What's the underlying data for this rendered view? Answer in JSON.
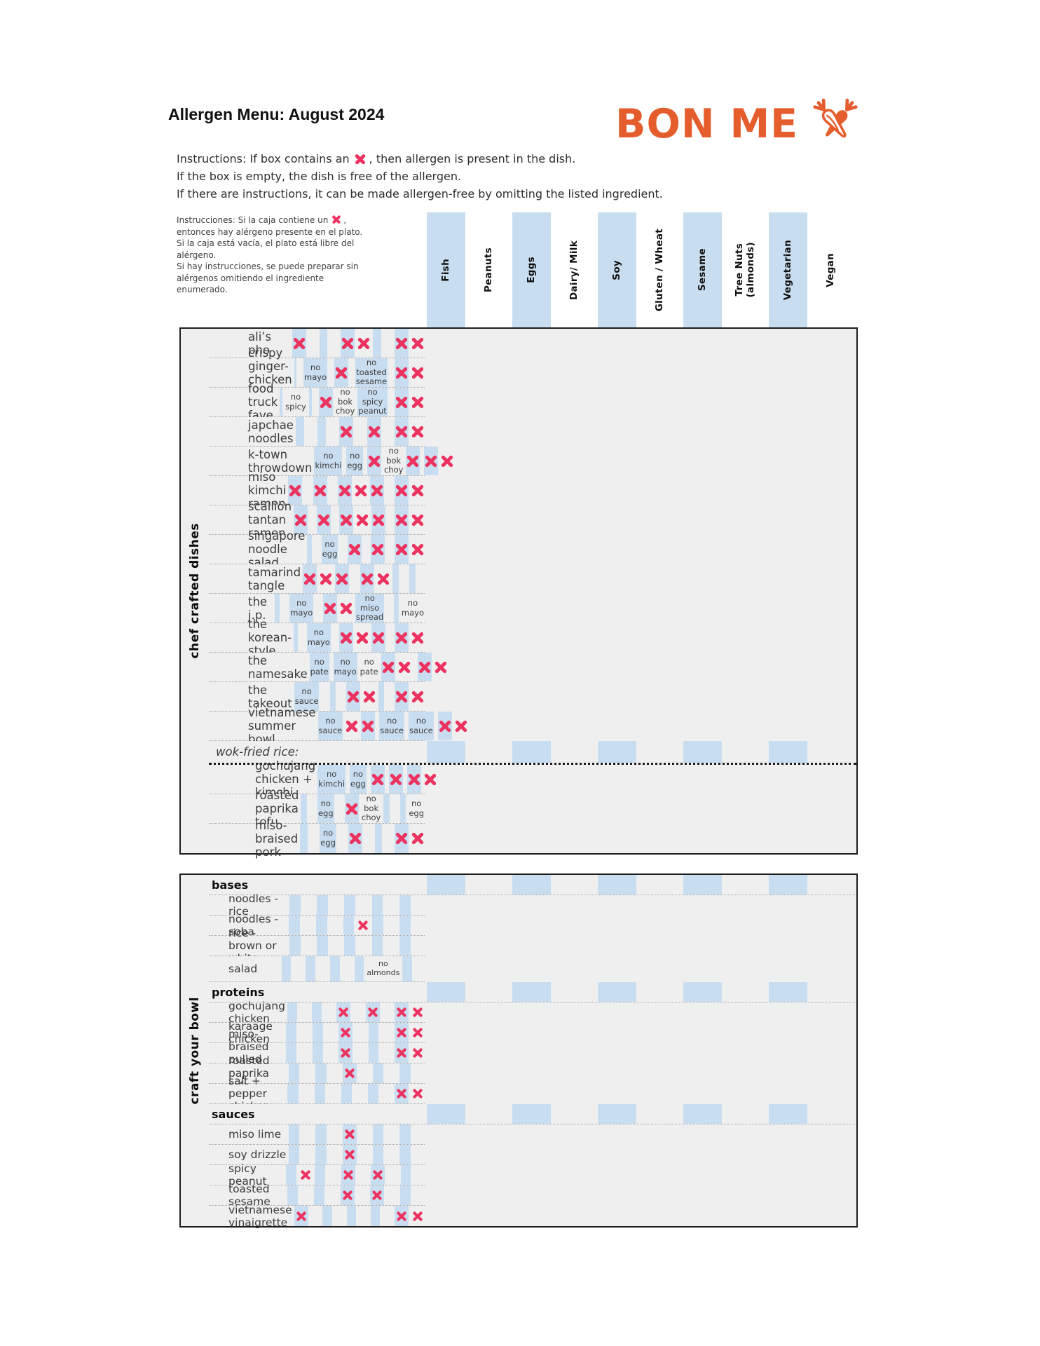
{
  "page": {
    "title": "Allergen Menu: August 2024"
  },
  "logo": {
    "text": "BON ME",
    "color": "#e55d2d"
  },
  "instructions_en": {
    "before_x": "Instructions: If box contains an",
    "after_x": ", then allergen is present in the dish.",
    "line2": "If the box is empty, the dish is free of the allergen.",
    "line3": "If there are instructions, it can be made allergen-free by omitting the listed ingredient."
  },
  "instructions_es": {
    "before_x": "Instrucciones: Si la caja contiene un",
    "after_x": ",",
    "rest": "entonces hay alérgeno presente en el plato.\nSi la caja está vacía, el plato está libre del\nalérgeno.\nSi hay instrucciones, se puede preparar sin\nalérgenos omitiendo el ingrediente\nenumerado."
  },
  "colors": {
    "accent_orange": "#e55d2d",
    "x_pink": "#ec3360",
    "band_blue": "#c9ddf0",
    "row_gray": "#efefef"
  },
  "columns": [
    {
      "label": "Fish",
      "shaded": true
    },
    {
      "label": "Peanuts",
      "shaded": false
    },
    {
      "label": "Eggs",
      "shaded": true
    },
    {
      "label": "Dairy/ Milk",
      "shaded": false
    },
    {
      "label": "Soy",
      "shaded": true
    },
    {
      "label": "Gluten / Wheat",
      "shaded": false
    },
    {
      "label": "Sesame",
      "shaded": true
    },
    {
      "label": "Tree Nuts\n(almonds)",
      "shaded": false
    },
    {
      "label": "Vegetarian",
      "shaded": true
    },
    {
      "label": "Vegan",
      "shaded": false
    }
  ],
  "sections": [
    {
      "id": "chef",
      "label": "chef crafted dishes",
      "rows": [
        {
          "type": "dish",
          "name": "ali’s pho",
          "cells": [
            "X",
            "",
            "",
            "",
            "X",
            "X",
            "",
            "",
            "X",
            "X"
          ]
        },
        {
          "type": "dish",
          "name": "crispy ginger-chicken bowl",
          "cells": [
            "",
            "",
            "no mayo",
            "",
            "X",
            "",
            "no toasted sesame",
            "",
            "X",
            "X"
          ]
        },
        {
          "type": "dish",
          "name": "food truck fave",
          "cells": [
            "",
            "no spicy",
            "",
            "",
            "X",
            "no bok choy",
            "no spicy peanut",
            "",
            "X",
            "X"
          ]
        },
        {
          "type": "dish",
          "name": "japchae noodles",
          "cells": [
            "",
            "",
            "",
            "",
            "X",
            "",
            "X",
            "",
            "X",
            "X"
          ]
        },
        {
          "type": "dish",
          "name": "k-town throwdown",
          "cells": [
            "no kimchi",
            "",
            "no egg",
            "",
            "X",
            "no bok choy",
            "X",
            "",
            "X",
            "X"
          ]
        },
        {
          "type": "dish",
          "name": "miso kimchi ramen",
          "cells": [
            "X",
            "",
            "X",
            "",
            "X",
            "X",
            "X",
            "",
            "X",
            "X"
          ]
        },
        {
          "type": "dish",
          "name": "scallion tantan ramen",
          "cells": [
            "X",
            "",
            "X",
            "",
            "X",
            "X",
            "X",
            "",
            "X",
            "X"
          ]
        },
        {
          "type": "dish",
          "name": "singapore noodle salad",
          "cells": [
            "",
            "",
            "no egg",
            "",
            "X",
            "",
            "X",
            "",
            "X",
            "X"
          ]
        },
        {
          "type": "dish",
          "name": "tamarind tangle",
          "cells": [
            "X",
            "X",
            "X",
            "",
            "X",
            "X",
            "",
            "",
            "",
            ""
          ]
        },
        {
          "type": "dish",
          "name": "the j.p.",
          "cells": [
            "",
            "",
            "no mayo",
            "",
            "X",
            "X",
            "no miso spread",
            "",
            "",
            "no mayo"
          ]
        },
        {
          "type": "dish",
          "name": "the korean-style",
          "cells": [
            "",
            "",
            "no mayo",
            "",
            "X",
            "X",
            "X",
            "",
            "X",
            "X"
          ]
        },
        {
          "type": "dish",
          "name": "the namesake",
          "cells": [
            "no pate",
            "",
            "no mayo",
            "no pate",
            "X",
            "X",
            "",
            "",
            "X",
            "X"
          ]
        },
        {
          "type": "dish",
          "name": "the takeout",
          "cells": [
            "no sauce",
            "",
            "",
            "",
            "X",
            "X",
            "",
            "",
            "X",
            "X"
          ]
        },
        {
          "type": "dish",
          "name": "vietnamese summer bowl",
          "cells": [
            "no sauce",
            "X",
            "X",
            "",
            "no sauce",
            "",
            "no sauce",
            "",
            "X",
            "X"
          ]
        },
        {
          "type": "subheader_italic",
          "name": "wok-fried rice:",
          "divider": true,
          "h": 34,
          "cells": [
            "",
            "",
            "",
            "",
            "",
            "",
            "",
            "",
            "",
            ""
          ]
        },
        {
          "type": "dish",
          "name": "gochujang chicken + kimchi",
          "indent": true,
          "cells": [
            "no kimchi",
            "",
            "no egg",
            "",
            "X",
            "",
            "X",
            "",
            "X",
            "X"
          ]
        },
        {
          "type": "dish",
          "name": "roasted paprika tofu",
          "indent": true,
          "cells": [
            "",
            "",
            "no egg",
            "",
            "X",
            "no bok choy",
            "",
            "",
            "",
            "no egg"
          ]
        },
        {
          "type": "dish",
          "name": "miso-braised pork",
          "indent": true,
          "cells": [
            "",
            "",
            "no egg",
            "",
            "X",
            "",
            "",
            "",
            "X",
            "X"
          ]
        }
      ]
    },
    {
      "id": "craft",
      "label": "craft your bowl",
      "rows": [
        {
          "type": "subheader",
          "name": "bases",
          "cells": [
            "",
            "",
            "",
            "",
            "",
            "",
            "",
            "",
            "",
            ""
          ]
        },
        {
          "type": "dish",
          "name": "noodles - rice",
          "cells": [
            "",
            "",
            "",
            "",
            "",
            "",
            "",
            "",
            "",
            ""
          ]
        },
        {
          "type": "dish",
          "name": "noodles - soba",
          "cells": [
            "",
            "",
            "",
            "",
            "",
            "X",
            "",
            "",
            "",
            ""
          ]
        },
        {
          "type": "dish",
          "name": "rice - brown or white",
          "cells": [
            "",
            "",
            "",
            "",
            "",
            "",
            "",
            "",
            "",
            ""
          ]
        },
        {
          "type": "dish",
          "name": "salad",
          "h": 37,
          "cells": [
            "",
            "",
            "",
            "",
            "",
            "",
            "",
            "no almonds",
            "",
            ""
          ]
        },
        {
          "type": "subheader",
          "name": "proteins",
          "cells": [
            "",
            "",
            "",
            "",
            "",
            "",
            "",
            "",
            "",
            ""
          ]
        },
        {
          "type": "dish",
          "name": "gochujang chicken",
          "cells": [
            "",
            "",
            "",
            "",
            "X",
            "",
            "X",
            "",
            "X",
            "X"
          ]
        },
        {
          "type": "dish",
          "name": "karaage chicken",
          "cells": [
            "",
            "",
            "",
            "",
            "X",
            "",
            "",
            "",
            "X",
            "X"
          ]
        },
        {
          "type": "dish",
          "name": "miso-braised pulled pork",
          "cells": [
            "",
            "",
            "",
            "",
            "X",
            "",
            "",
            "",
            "X",
            "X"
          ]
        },
        {
          "type": "dish",
          "name": "roasted paprika tofu",
          "cells": [
            "",
            "",
            "",
            "",
            "X",
            "",
            "",
            "",
            "",
            ""
          ]
        },
        {
          "type": "dish",
          "name": "salt + pepper chicken",
          "cells": [
            "",
            "",
            "",
            "",
            "",
            "",
            "",
            "",
            "X",
            "X"
          ]
        },
        {
          "type": "subheader",
          "name": "sauces",
          "cells": [
            "",
            "",
            "",
            "",
            "",
            "",
            "",
            "",
            "",
            ""
          ]
        },
        {
          "type": "dish",
          "name": "miso lime",
          "cells": [
            "",
            "",
            "",
            "",
            "X",
            "",
            "",
            "",
            "",
            ""
          ]
        },
        {
          "type": "dish",
          "name": "soy drizzle",
          "cells": [
            "",
            "",
            "",
            "",
            "X",
            "",
            "",
            "",
            "",
            ""
          ]
        },
        {
          "type": "dish",
          "name": "spicy peanut",
          "cells": [
            "",
            "X",
            "",
            "",
            "X",
            "",
            "X",
            "",
            "",
            ""
          ]
        },
        {
          "type": "dish",
          "name": "toasted sesame",
          "cells": [
            "",
            "",
            "",
            "",
            "X",
            "",
            "X",
            "",
            "",
            ""
          ]
        },
        {
          "type": "dish",
          "name": "vietnamese vinaigrette",
          "cells": [
            "X",
            "",
            "",
            "",
            "",
            "",
            "",
            "",
            "X",
            "X"
          ]
        }
      ]
    }
  ]
}
